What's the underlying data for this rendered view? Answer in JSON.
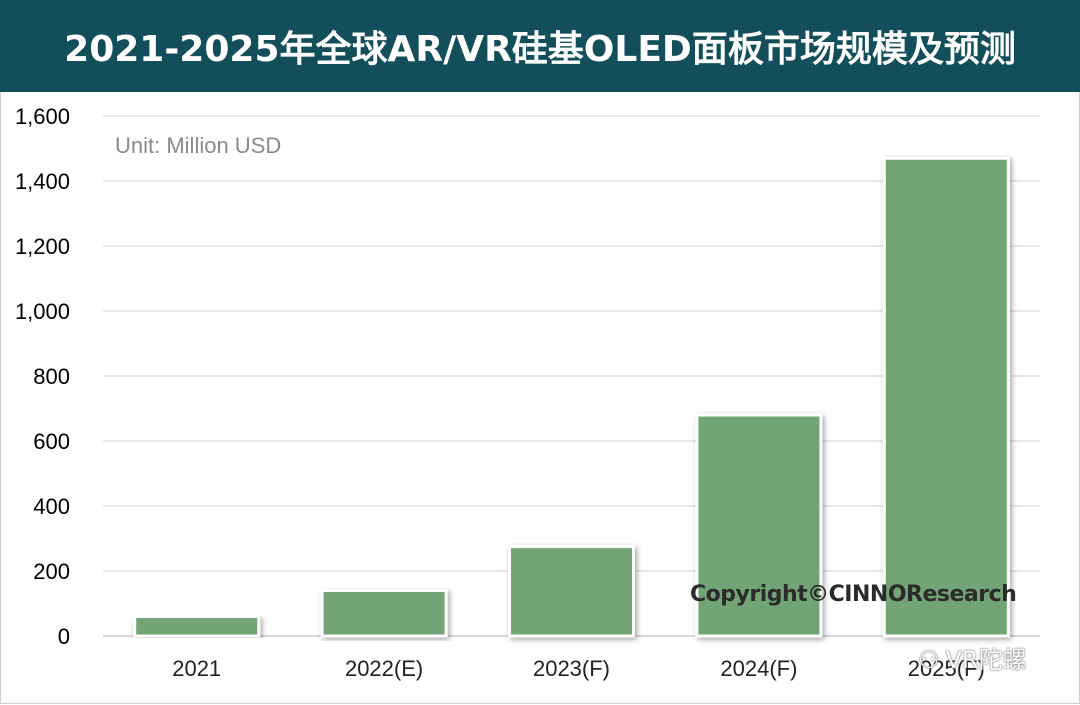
{
  "header": {
    "title": "2021-2025年全球AR/VR硅基OLED面板市场规模及预测"
  },
  "annotations": {
    "unit": "Unit: Million USD",
    "copyright": "Copyright©CINNOResearch",
    "watermark": "VR陀螺"
  },
  "colors": {
    "bar": "#72a474",
    "title_bg": "#124f5a",
    "grid": "#d9d9d9"
  },
  "chart_data": {
    "type": "bar",
    "title": "2021-2025年全球AR/VR硅基OLED面板市场规模及预测",
    "categories": [
      "2021",
      "2022(E)",
      "2023(F)",
      "2024(F)",
      "2025(F)"
    ],
    "values": [
      60,
      140,
      275,
      680,
      1470
    ],
    "ylim": [
      0,
      1600
    ],
    "yticks": [
      0,
      200,
      400,
      600,
      800,
      1000,
      1200,
      1400,
      1600
    ],
    "ytick_labels": [
      "0",
      "200",
      "400",
      "600",
      "800",
      "1,000",
      "1,200",
      "1,400",
      "1,600"
    ],
    "grid": true,
    "legend": "none"
  }
}
